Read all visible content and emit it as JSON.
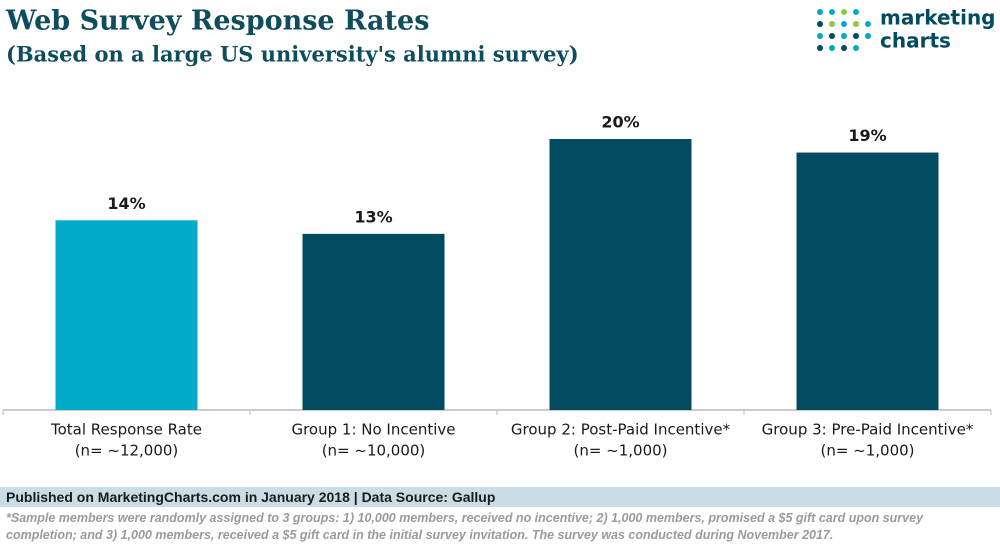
{
  "chart_data": {
    "type": "bar",
    "title": "Web Survey Response Rates",
    "subtitle": "(Based on a large US university's alumni survey)",
    "logo": [
      "marketing",
      "charts"
    ],
    "categories": [
      [
        "Total Response Rate",
        "(n= ~12,000)"
      ],
      [
        "Group 1: No Incentive",
        "(n= ~10,000)"
      ],
      [
        "Group 2: Post-Paid Incentive*",
        "(n= ~1,000)"
      ],
      [
        "Group 3: Pre-Paid Incentive*",
        "(n= ~1,000)"
      ]
    ],
    "values": [
      14,
      13,
      20,
      19
    ],
    "value_labels": [
      "14%",
      "13%",
      "20%",
      "19%"
    ],
    "colors": [
      "#00aac8",
      "#004b60",
      "#004b60",
      "#004b60"
    ],
    "ylim": [
      0,
      20
    ],
    "source": "Published on MarketingCharts.com in January 2018 | Data Source: Gallup",
    "note": "*Sample members were randomly assigned to 3 groups: 1) 10,000 members, received no incentive; 2) 1,000 members, promised a $5 gift card upon survey completion; and 3) 1,000 members, received a $5 gift card in the initial survey invitation. The survey was conducted during November 2017."
  }
}
